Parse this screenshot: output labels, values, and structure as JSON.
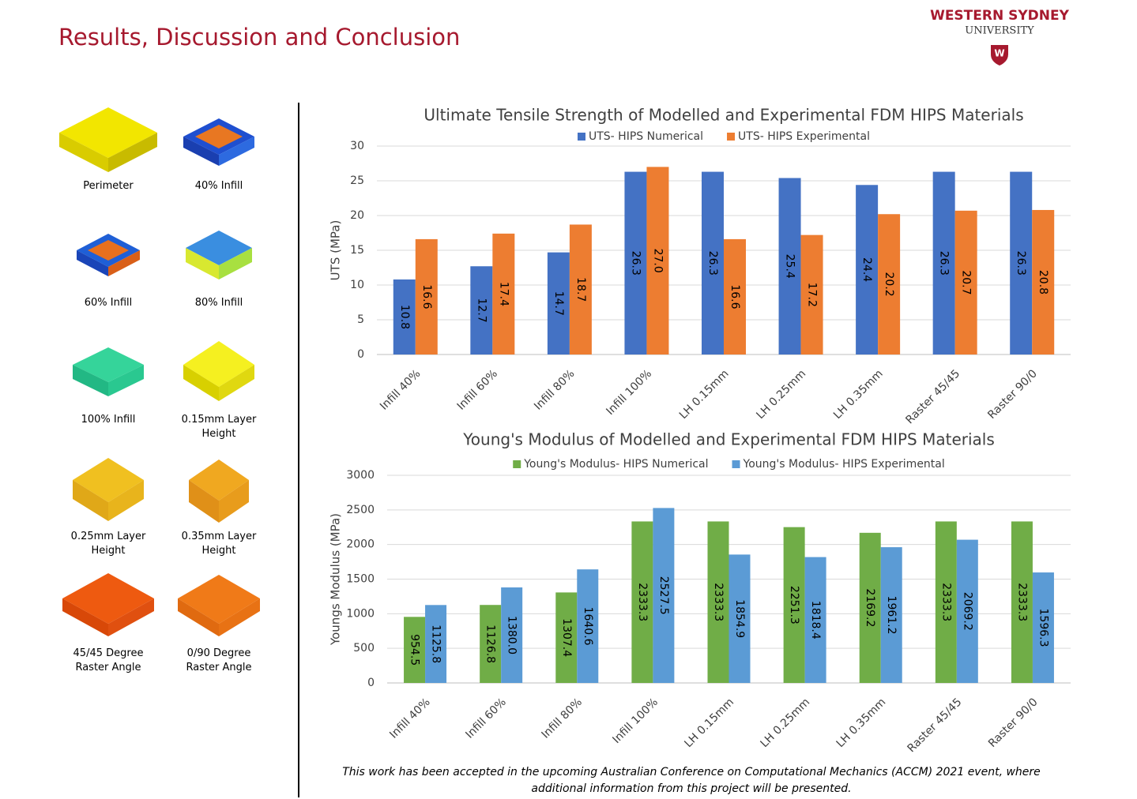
{
  "title": "Results, Discussion and Conclusion",
  "logo": {
    "line1": "WESTERN SYDNEY",
    "line2": "UNIVERSITY",
    "mark": "W"
  },
  "figures": [
    {
      "caption": "Perimeter"
    },
    {
      "caption": "40% Infill"
    },
    {
      "caption": "60% Infill"
    },
    {
      "caption": "80% Infill"
    },
    {
      "caption": "100% Infill"
    },
    {
      "caption": "0.15mm Layer Height"
    },
    {
      "caption": "0.25mm Layer Height"
    },
    {
      "caption": "0.35mm Layer Height"
    },
    {
      "caption": "45/45 Degree Raster Angle"
    },
    {
      "caption": "0/90 Degree Raster Angle"
    }
  ],
  "footnote": "This work has been accepted in the upcoming Australian Conference on Computational Mechanics (ACCM) 2021 event, where additional information from this project will be presented.",
  "chart_data": [
    {
      "type": "bar",
      "title": "Ultimate Tensile Strength of Modelled and Experimental FDM HIPS Materials",
      "ylabel": "UTS (MPa)",
      "categories": [
        "Infill 40%",
        "Infill 60%",
        "Infill 80%",
        "Infill 100%",
        "LH 0.15mm",
        "LH 0.25mm",
        "LH 0.35mm",
        "Raster 45/45",
        "Raster  90/0"
      ],
      "series": [
        {
          "name": "UTS- HIPS Numerical",
          "color": "#4472c4",
          "values": [
            10.8,
            12.7,
            14.7,
            26.3,
            26.3,
            25.4,
            24.4,
            26.3,
            26.3
          ],
          "value_labels": [
            "10.8",
            "12.7",
            "14.7",
            "26.3",
            "26.3",
            "25.4",
            "24.4",
            "26.3",
            "26.3"
          ]
        },
        {
          "name": "UTS- HIPS Experimental",
          "color": "#ed7d31",
          "values": [
            16.6,
            17.4,
            18.7,
            27.0,
            16.6,
            17.2,
            20.2,
            20.7,
            20.8
          ],
          "value_labels": [
            "16.6",
            "17.4",
            "18.7",
            "27.0",
            "16.6",
            "17.2",
            "20.2",
            "20.7",
            "20.8"
          ]
        }
      ],
      "ylim": [
        0,
        30
      ],
      "yticks": [
        0,
        5,
        10,
        15,
        20,
        25,
        30
      ],
      "grid": true,
      "legend": "top"
    },
    {
      "type": "bar",
      "title": "Young's Modulus of Modelled and Experimental FDM HIPS Materials",
      "ylabel": "Youngs Modulus (MPa)",
      "categories": [
        "Infill 40%",
        "Infill 60%",
        "Infill 80%",
        "Infill 100%",
        "LH 0.15mm",
        "LH 0.25mm",
        "LH 0.35mm",
        "Raster 45/45",
        "Raster  90/0"
      ],
      "series": [
        {
          "name": "Young's Modulus- HIPS Numerical",
          "color": "#70ad47",
          "values": [
            954.5,
            1126.8,
            1307.4,
            2333.3,
            2333.3,
            2251.3,
            2169.2,
            2333.3,
            2333.3
          ],
          "value_labels": [
            "954.5",
            "1126.8",
            "1307.4",
            "2333.3",
            "2333.3",
            "2251.3",
            "2169.2",
            "2333.3",
            "2333.3"
          ]
        },
        {
          "name": "Young's Modulus- HIPS Experimental",
          "color": "#5b9bd5",
          "values": [
            1125.8,
            1380.0,
            1640.6,
            2527.5,
            1854.9,
            1818.4,
            1961.2,
            2069.2,
            1596.3
          ],
          "value_labels": [
            "1125.8",
            "1380.0",
            "1640.6",
            "2527.5",
            "1854.9",
            "1818.4",
            "1961.2",
            "2069.2",
            "1596.3"
          ]
        }
      ],
      "ylim": [
        0,
        3000
      ],
      "yticks": [
        0,
        500,
        1000,
        1500,
        2000,
        2500,
        3000
      ],
      "grid": true,
      "legend": "top"
    }
  ]
}
